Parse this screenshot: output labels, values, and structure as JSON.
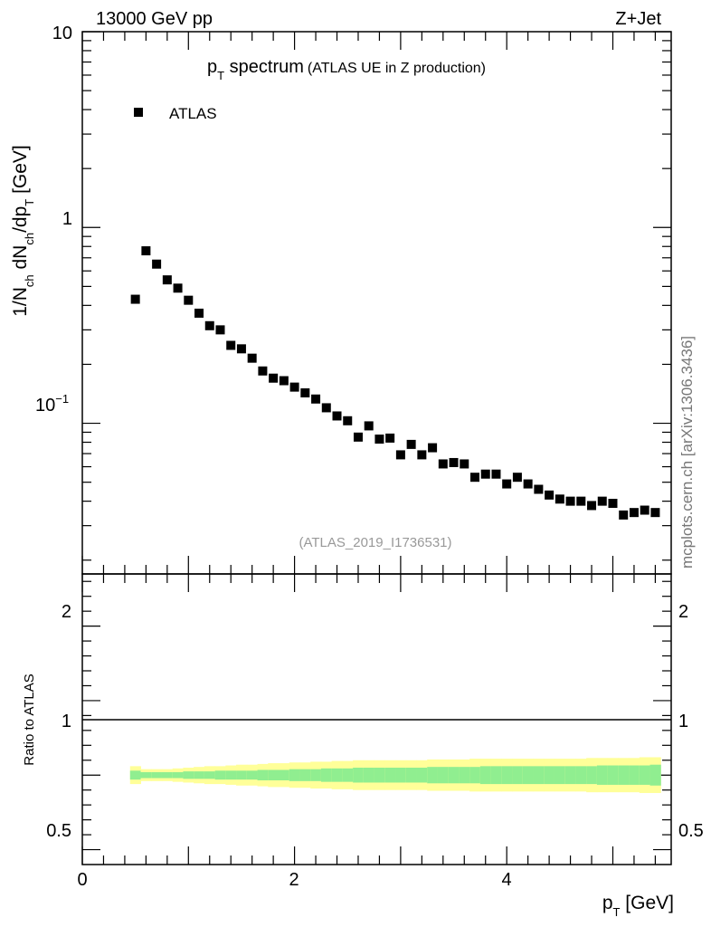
{
  "header": {
    "energy": "13000 GeV pp",
    "process": "Z+Jet"
  },
  "plot_title": {
    "main": "p",
    "main_sub": "T",
    "main_rest": " spectrum",
    "note": "(ATLAS UE in Z production)"
  },
  "ylabel_main": {
    "p1": "1/N",
    "s1": "ch",
    "p2": " dN",
    "s2": "ch",
    "p3": "/dp",
    "s3": "T",
    "p4": " [GeV]"
  },
  "ylabel_ratio": "Ratio to ATLAS",
  "xlabel": {
    "p": "p",
    "sub": "T",
    "rest": " [GeV]"
  },
  "legend": {
    "label": "ATLAS"
  },
  "analysis_id": "(ATLAS_2019_I1736531)",
  "side_label": "mcplots.cern.ch [arXiv:1306.3436]",
  "upper_ticks": {
    "t10": "10",
    "t1": "1",
    "t01_base": "10",
    "t01_exp": "−1"
  },
  "ratio_ticks": {
    "t2": "2",
    "t1": "1",
    "t05": "0.5"
  },
  "x_ticks": [
    "0",
    "2",
    "4"
  ],
  "colors": {
    "marker": "#000000",
    "band_inner": "#90ee90",
    "band_outer": "#ffff99"
  },
  "chart_data": {
    "type": "scatter",
    "title": "pT spectrum (ATLAS UE in Z production)",
    "xlabel": "pT [GeV]",
    "ylabel": "1/Nch dNch/dpT [GeV]",
    "yscale": "log",
    "xlim": [
      0,
      5.55
    ],
    "ylim": [
      0.017,
      10
    ],
    "series": [
      {
        "name": "ATLAS",
        "x": [
          0.5,
          0.6,
          0.7,
          0.8,
          0.9,
          1.0,
          1.1,
          1.2,
          1.3,
          1.4,
          1.5,
          1.6,
          1.7,
          1.8,
          1.9,
          2.0,
          2.1,
          2.2,
          2.3,
          2.4,
          2.5,
          2.6,
          2.7,
          2.8,
          2.9,
          3.0,
          3.1,
          3.2,
          3.3,
          3.4,
          3.5,
          3.6,
          3.7,
          3.8,
          3.9,
          4.0,
          4.1,
          4.2,
          4.3,
          4.4,
          4.5,
          4.6,
          4.7,
          4.8,
          4.9,
          5.0,
          5.1,
          5.2,
          5.3,
          5.4
        ],
        "y": [
          0.43,
          0.76,
          0.65,
          0.54,
          0.49,
          0.425,
          0.365,
          0.315,
          0.3,
          0.25,
          0.24,
          0.215,
          0.185,
          0.17,
          0.165,
          0.153,
          0.143,
          0.133,
          0.12,
          0.109,
          0.103,
          0.085,
          0.097,
          0.083,
          0.084,
          0.069,
          0.078,
          0.069,
          0.075,
          0.062,
          0.063,
          0.062,
          0.053,
          0.055,
          0.055,
          0.049,
          0.053,
          0.049,
          0.046,
          0.043,
          0.041,
          0.04,
          0.04,
          0.038,
          0.04,
          0.039,
          0.034,
          0.035,
          0.036,
          0.035
        ]
      }
    ],
    "ratio": {
      "ylabel": "Ratio to ATLAS",
      "ylim": [
        0.4,
        2.35
      ],
      "reference": 1.0,
      "x": [
        0.5,
        0.6,
        0.7,
        0.8,
        0.9,
        1.0,
        1.1,
        1.2,
        1.3,
        1.4,
        1.5,
        1.6,
        1.7,
        1.8,
        1.9,
        2.0,
        2.1,
        2.2,
        2.3,
        2.4,
        2.5,
        2.6,
        2.7,
        2.8,
        2.9,
        3.0,
        3.1,
        3.2,
        3.3,
        3.4,
        3.5,
        3.6,
        3.7,
        3.8,
        3.9,
        4.0,
        4.1,
        4.2,
        4.3,
        4.4,
        4.5,
        4.6,
        4.7,
        4.8,
        4.9,
        5.0,
        5.1,
        5.2,
        5.3,
        5.4
      ],
      "inner_rel": [
        0.03,
        0.02,
        0.02,
        0.02,
        0.02,
        0.025,
        0.025,
        0.025,
        0.03,
        0.03,
        0.03,
        0.03,
        0.035,
        0.035,
        0.035,
        0.04,
        0.04,
        0.04,
        0.045,
        0.045,
        0.045,
        0.05,
        0.05,
        0.05,
        0.05,
        0.05,
        0.05,
        0.05,
        0.055,
        0.055,
        0.055,
        0.055,
        0.055,
        0.06,
        0.06,
        0.06,
        0.06,
        0.06,
        0.06,
        0.06,
        0.06,
        0.06,
        0.06,
        0.06,
        0.065,
        0.065,
        0.065,
        0.065,
        0.065,
        0.07
      ],
      "outer_rel": [
        0.06,
        0.04,
        0.04,
        0.04,
        0.045,
        0.05,
        0.055,
        0.06,
        0.06,
        0.065,
        0.07,
        0.07,
        0.075,
        0.08,
        0.08,
        0.085,
        0.085,
        0.09,
        0.09,
        0.095,
        0.095,
        0.1,
        0.1,
        0.1,
        0.1,
        0.1,
        0.1,
        0.1,
        0.105,
        0.105,
        0.105,
        0.105,
        0.11,
        0.11,
        0.11,
        0.11,
        0.11,
        0.11,
        0.11,
        0.11,
        0.11,
        0.11,
        0.11,
        0.115,
        0.115,
        0.115,
        0.115,
        0.115,
        0.12,
        0.12
      ]
    }
  }
}
